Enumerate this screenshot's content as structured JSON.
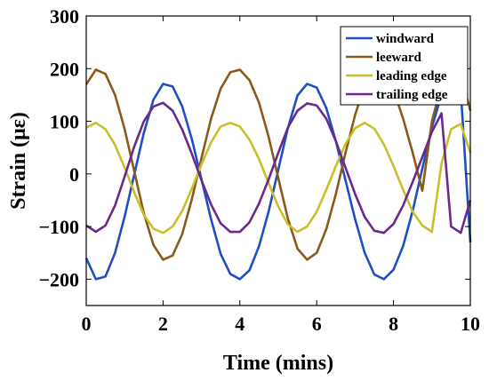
{
  "chart_data": {
    "type": "line",
    "xlabel": "Time (mins)",
    "ylabel": "Strain (με)",
    "xlim": [
      0,
      10
    ],
    "ylim": [
      -250,
      300
    ],
    "xticks": [
      0,
      2,
      4,
      6,
      8,
      10
    ],
    "yticks": [
      -200,
      -100,
      0,
      100,
      200,
      300
    ],
    "legend_position": "top-right",
    "grid": false,
    "series": [
      {
        "name": "windward",
        "color": "#1f4fc0",
        "x": [
          0,
          0.25,
          0.5,
          0.75,
          1.0,
          1.25,
          1.5,
          1.75,
          2.0,
          2.25,
          2.5,
          2.75,
          3.0,
          3.25,
          3.5,
          3.75,
          4.0,
          4.25,
          4.5,
          4.75,
          5.0,
          5.25,
          5.5,
          5.75,
          6.0,
          6.25,
          6.5,
          6.75,
          7.0,
          7.25,
          7.5,
          7.75,
          8.0,
          8.25,
          8.5,
          8.75,
          9.0,
          9.25,
          9.5,
          9.75,
          10.0
        ],
        "y": [
          -160,
          -200,
          -195,
          -150,
          -81,
          -1,
          78,
          141,
          171,
          166,
          128,
          66,
          -10,
          -86,
          -152,
          -190,
          -200,
          -183,
          -137,
          -71,
          8,
          87,
          149,
          171,
          164,
          125,
          62,
          -12,
          -86,
          -150,
          -191,
          -200,
          -182,
          -137,
          -70,
          10,
          89,
          150,
          172,
          160,
          -130
        ]
      },
      {
        "name": "leeward",
        "color": "#8a5a1a",
        "x": [
          0,
          0.25,
          0.5,
          0.75,
          1.0,
          1.25,
          1.5,
          1.75,
          2.0,
          2.25,
          2.5,
          2.75,
          3.0,
          3.25,
          3.5,
          3.75,
          4.0,
          4.25,
          4.5,
          4.75,
          5.0,
          5.25,
          5.5,
          5.75,
          6.0,
          6.25,
          6.5,
          6.75,
          7.0,
          7.25,
          7.5,
          7.75,
          8.0,
          8.25,
          8.5,
          8.75,
          9.0,
          9.25,
          9.5,
          9.75,
          10.0
        ],
        "y": [
          170,
          198,
          190,
          150,
          85,
          5,
          -75,
          -135,
          -163,
          -155,
          -114,
          -48,
          30,
          105,
          162,
          193,
          198,
          178,
          135,
          70,
          -8,
          -85,
          -142,
          -163,
          -150,
          -105,
          -38,
          40,
          112,
          168,
          196,
          195,
          160,
          105,
          40,
          -32,
          100,
          170,
          198,
          190,
          120
        ]
      },
      {
        "name": "leading edge",
        "color": "#c8c02a",
        "x": [
          0,
          0.25,
          0.5,
          0.75,
          1.0,
          1.25,
          1.5,
          1.75,
          2.0,
          2.25,
          2.5,
          2.75,
          3.0,
          3.25,
          3.5,
          3.75,
          4.0,
          4.25,
          4.5,
          4.75,
          5.0,
          5.25,
          5.5,
          5.75,
          6.0,
          6.25,
          6.5,
          6.75,
          7.0,
          7.25,
          7.5,
          7.75,
          8.0,
          8.25,
          8.5,
          8.75,
          9.0,
          9.25,
          9.5,
          9.75,
          10.0
        ],
        "y": [
          88,
          97,
          85,
          55,
          12,
          -35,
          -78,
          -104,
          -112,
          -100,
          -70,
          -28,
          18,
          60,
          90,
          97,
          90,
          65,
          28,
          -18,
          -62,
          -96,
          -110,
          -100,
          -72,
          -30,
          15,
          57,
          87,
          97,
          86,
          56,
          15,
          -30,
          -72,
          -98,
          -110,
          20,
          85,
          95,
          40
        ]
      },
      {
        "name": "trailing edge",
        "color": "#6a2a8c",
        "x": [
          0,
          0.25,
          0.5,
          0.75,
          1.0,
          1.25,
          1.5,
          1.75,
          2.0,
          2.25,
          2.5,
          2.75,
          3.0,
          3.25,
          3.5,
          3.75,
          4.0,
          4.25,
          4.5,
          4.75,
          5.0,
          5.25,
          5.5,
          5.75,
          6.0,
          6.25,
          6.5,
          6.75,
          7.0,
          7.25,
          7.5,
          7.75,
          8.0,
          8.25,
          8.5,
          8.75,
          9.0,
          9.25,
          9.5,
          9.75,
          10.0
        ],
        "y": [
          -98,
          -110,
          -98,
          -60,
          -5,
          52,
          100,
          128,
          135,
          120,
          84,
          38,
          -12,
          -58,
          -94,
          -110,
          -110,
          -92,
          -56,
          -10,
          40,
          88,
          120,
          134,
          130,
          105,
          62,
          12,
          -38,
          -82,
          -108,
          -112,
          -95,
          -60,
          -15,
          32,
          80,
          115,
          -100,
          -112,
          -50
        ]
      }
    ]
  }
}
